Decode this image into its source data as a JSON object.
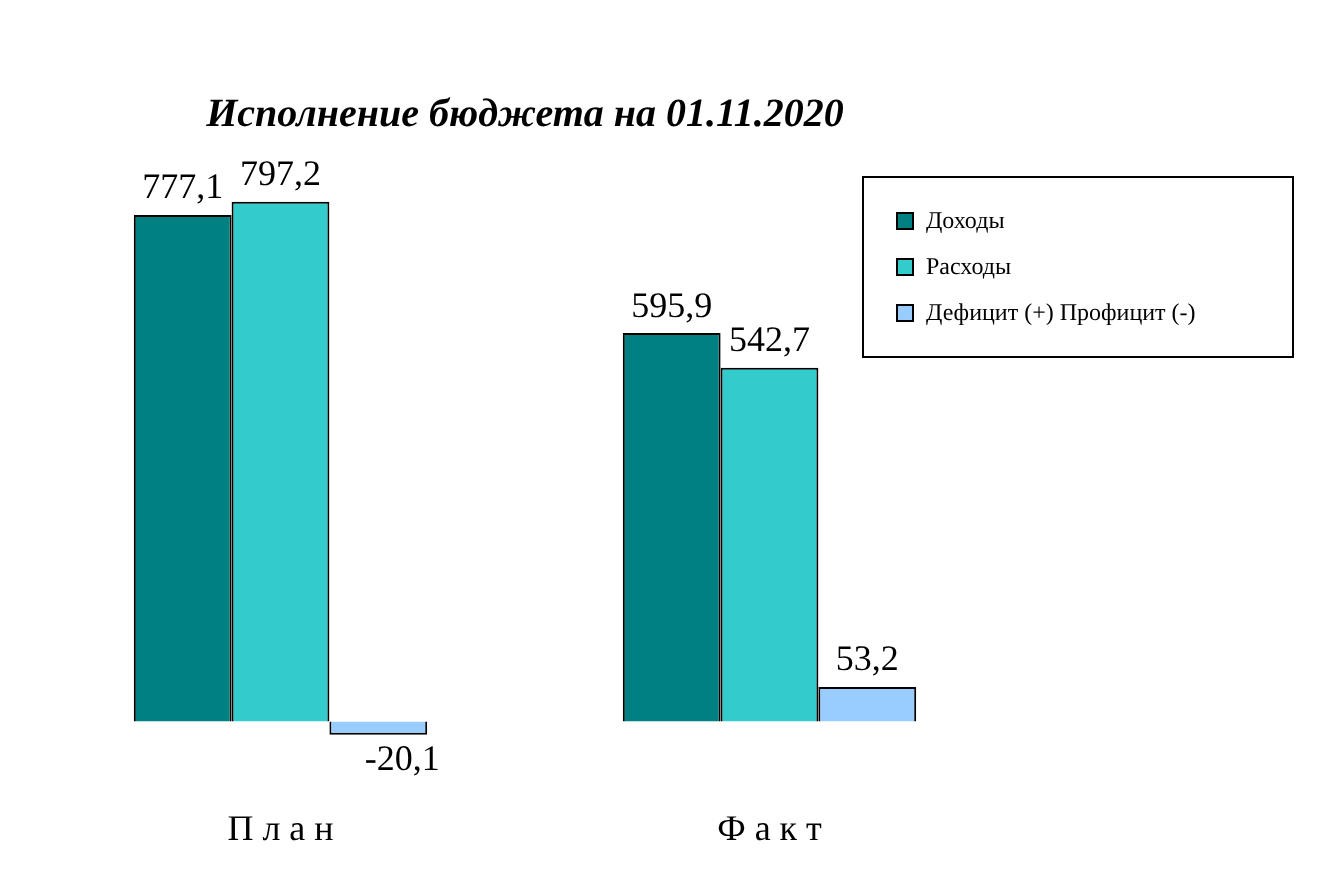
{
  "chart_data": {
    "type": "bar",
    "title": "Исполнение бюджета на 01.11.2020",
    "categories": [
      "П л а н",
      "Ф а к т"
    ],
    "series": [
      {
        "name": "Доходы",
        "color": "#008080",
        "values": [
          777.1,
          595.9
        ],
        "value_labels": [
          "777,1",
          "595,9"
        ]
      },
      {
        "name": "Расходы",
        "color": "#33cccc",
        "values": [
          797.2,
          542.7
        ],
        "value_labels": [
          "797,2",
          "542,7"
        ]
      },
      {
        "name": "Дефицит (+) Профицит (-)",
        "color": "#99ccff",
        "values": [
          -20.1,
          53.2
        ],
        "value_labels": [
          "-20,1",
          "53,2"
        ]
      }
    ],
    "legend": "top right"
  }
}
